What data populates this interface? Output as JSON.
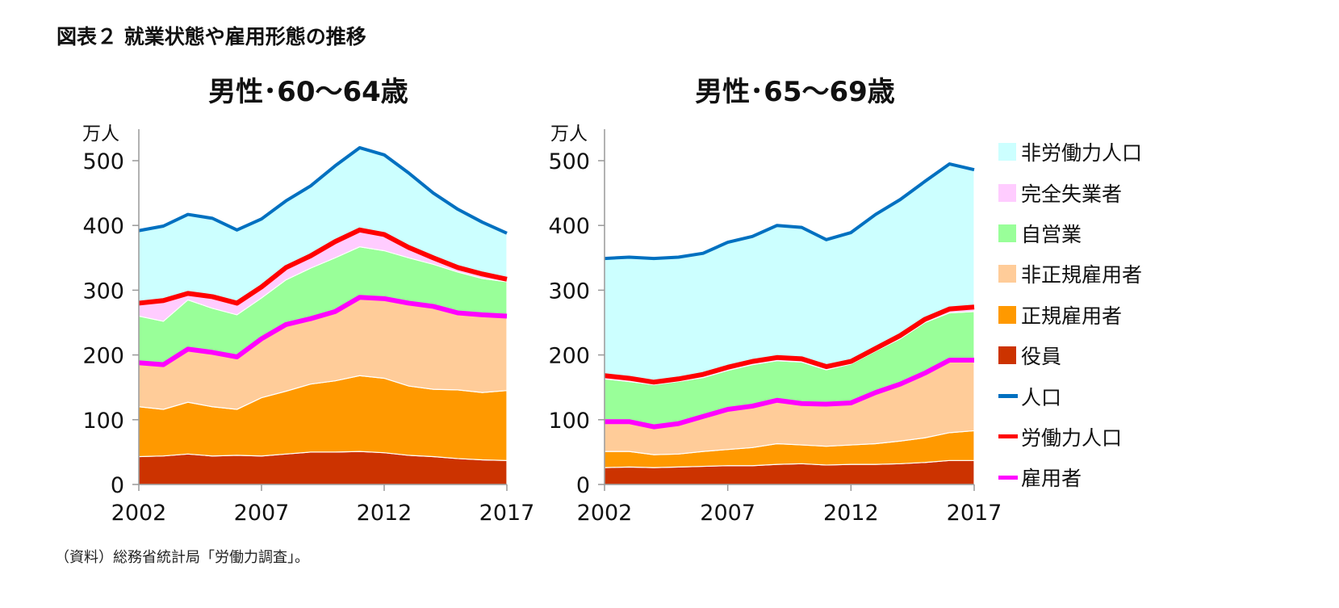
{
  "figure_title": "図表２ 就業状態や雇用形態の推移",
  "source_note": "（資料）総務省統計局「労働力調査」。",
  "legend": [
    {
      "key": "not_in_labor",
      "label": "非労働力人口",
      "kind": "area",
      "color": "#CCFFFF"
    },
    {
      "key": "unemployed",
      "label": "完全失業者",
      "kind": "area",
      "color": "#FFCCFF"
    },
    {
      "key": "self_employed",
      "label": "自営業",
      "kind": "area",
      "color": "#99FF99"
    },
    {
      "key": "non_regular",
      "label": "非正規雇用者",
      "kind": "area",
      "color": "#FFCC99"
    },
    {
      "key": "regular",
      "label": "正規雇用者",
      "kind": "area",
      "color": "#FF9900"
    },
    {
      "key": "executives",
      "label": "役員",
      "kind": "area",
      "color": "#CC3300"
    },
    {
      "key": "population",
      "label": "人口",
      "kind": "line",
      "color": "#0070C0"
    },
    {
      "key": "labor_force",
      "label": "労働力人口",
      "kind": "line",
      "color": "#FF0000"
    },
    {
      "key": "employees",
      "label": "雇用者",
      "kind": "line",
      "color": "#FF00FF"
    }
  ],
  "chart_data": [
    {
      "type": "area",
      "stacked": true,
      "title": "男性･60～64歳",
      "ylabel": "万人",
      "ylim": [
        0,
        500
      ],
      "yticks": [
        0,
        100,
        200,
        300,
        400,
        500
      ],
      "xticks": [
        2002,
        2007,
        2012,
        2017
      ],
      "x": [
        2002,
        2003,
        2004,
        2005,
        2006,
        2007,
        2008,
        2009,
        2010,
        2011,
        2012,
        2013,
        2014,
        2015,
        2016,
        2017
      ],
      "series": {
        "executives": [
          43,
          44,
          47,
          44,
          45,
          44,
          47,
          50,
          50,
          51,
          49,
          45,
          43,
          40,
          38,
          37
        ],
        "regular": [
          77,
          72,
          80,
          76,
          71,
          90,
          97,
          105,
          110,
          117,
          115,
          107,
          104,
          106,
          104,
          108
        ],
        "non_regular": [
          68,
          69,
          82,
          84,
          81,
          91,
          103,
          101,
          107,
          121,
          123,
          128,
          128,
          119,
          120,
          115
        ],
        "self_employed": [
          72,
          67,
          76,
          68,
          65,
          63,
          69,
          78,
          83,
          78,
          74,
          70,
          65,
          63,
          56,
          53
        ],
        "unemployed": [
          20,
          32,
          10,
          18,
          18,
          17,
          19,
          19,
          25,
          26,
          25,
          16,
          10,
          7,
          7,
          4
        ],
        "not_in_labor": [
          112,
          115,
          122,
          121,
          113,
          105,
          103,
          108,
          117,
          127,
          123,
          115,
          100,
          90,
          80,
          71
        ]
      }
    },
    {
      "type": "area",
      "stacked": true,
      "title": "男性･65～69歳",
      "ylabel": "万人",
      "ylim": [
        0,
        500
      ],
      "yticks": [
        0,
        100,
        200,
        300,
        400,
        500
      ],
      "xticks": [
        2002,
        2007,
        2012,
        2017
      ],
      "x": [
        2002,
        2003,
        2004,
        2005,
        2006,
        2007,
        2008,
        2009,
        2010,
        2011,
        2012,
        2013,
        2014,
        2015,
        2016,
        2017
      ],
      "series": {
        "executives": [
          26,
          27,
          26,
          27,
          28,
          29,
          29,
          31,
          32,
          30,
          31,
          31,
          32,
          34,
          37,
          37
        ],
        "regular": [
          25,
          24,
          20,
          20,
          23,
          25,
          28,
          32,
          29,
          29,
          30,
          32,
          35,
          38,
          43,
          46
        ],
        "non_regular": [
          46,
          46,
          43,
          47,
          54,
          62,
          64,
          67,
          64,
          65,
          65,
          79,
          88,
          100,
          112,
          109
        ],
        "self_employed": [
          66,
          62,
          65,
          65,
          60,
          60,
          64,
          61,
          64,
          53,
          60,
          64,
          70,
          78,
          73,
          75
        ],
        "unemployed": [
          5,
          5,
          4,
          4,
          5,
          5,
          5,
          5,
          5,
          5,
          4,
          4,
          5,
          5,
          6,
          7
        ],
        "not_in_labor": [
          181,
          187,
          191,
          188,
          187,
          193,
          193,
          204,
          203,
          196,
          199,
          207,
          210,
          213,
          224,
          212
        ]
      }
    }
  ]
}
